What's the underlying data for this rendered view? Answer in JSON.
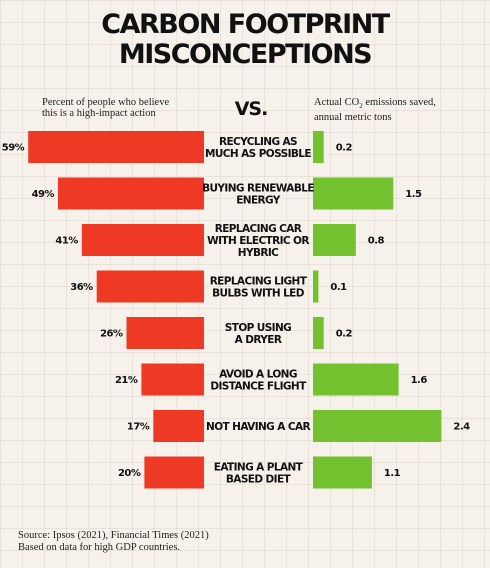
{
  "title_line1": "CARBON FOOTPRINT",
  "title_line2": "MISCONCEPTIONS",
  "left_subtitle_line1": "Percent of people who believe",
  "left_subtitle_line2": "this is a high-impact action",
  "vs_label": "VS.",
  "right_subtitle_line1_pre": "Actual CO",
  "right_subtitle_line1_sub": "2",
  "right_subtitle_line1_post": " emissions saved,",
  "right_subtitle_line2": "annual metric tons",
  "source_line1": "Source: Ipsos (2021), Financial Times (2021)",
  "source_line2": "Based on data for high GDP countries.",
  "colors": {
    "belief_bar": "#ee3a24",
    "emissions_bar": "#73c12f",
    "background": "#f6f1ea"
  },
  "chart_data": {
    "type": "bar",
    "orientation": "horizontal-diverging",
    "categories": [
      [
        "RECYCLING AS",
        "MUCH AS POSSIBLE"
      ],
      [
        "BUYING RENEWABLE",
        "ENERGY"
      ],
      [
        "REPLACING CAR",
        "WITH ELECTRIC OR",
        "HYBRIC"
      ],
      [
        "REPLACING LIGHT",
        "BULBS WITH LED"
      ],
      [
        "STOP USING",
        "A DRYER"
      ],
      [
        "AVOID A LONG",
        "DISTANCE FLIGHT"
      ],
      [
        "NOT HAVING A CAR"
      ],
      [
        "EATING A PLANT",
        "BASED DIET"
      ]
    ],
    "series": [
      {
        "values": [
          59,
          49,
          41,
          36,
          26,
          21,
          17,
          20
        ],
        "labels": [
          "59%",
          "49%",
          "41%",
          "36%",
          "26%",
          "21%",
          "17%",
          "20%"
        ]
      },
      {
        "values": [
          0.2,
          1.5,
          0.8,
          0.1,
          0.2,
          1.6,
          2.4,
          1.1
        ],
        "labels": [
          "0.2",
          "1.5",
          "0.8",
          "0.1",
          "0.2",
          "1.6",
          "2.4",
          "1.1"
        ]
      }
    ]
  }
}
